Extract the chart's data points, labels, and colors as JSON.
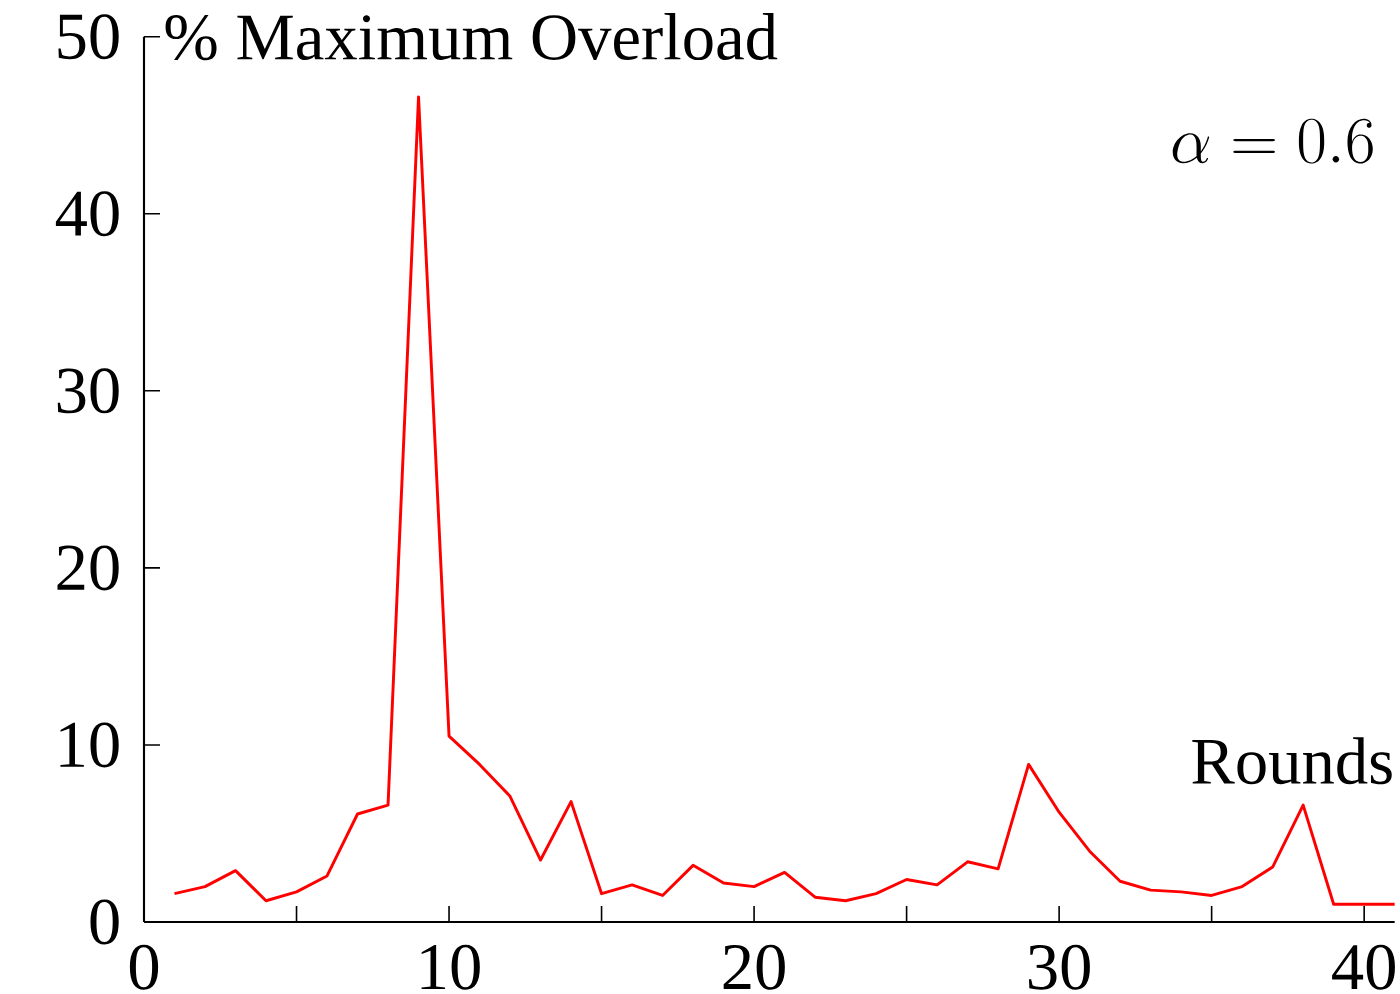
{
  "chart_data": {
    "type": "line",
    "xlabel": "Rounds",
    "ylabel": "% Maximum Overload",
    "annotations": [
      "\\alpha = 0.6"
    ],
    "x": [
      1,
      2,
      3,
      4,
      5,
      6,
      7,
      8,
      9,
      10,
      11,
      12,
      13,
      14,
      15,
      16,
      17,
      18,
      19,
      20,
      21,
      22,
      23,
      24,
      25,
      26,
      27,
      28,
      29,
      30,
      31,
      32,
      33,
      34,
      35,
      36,
      37,
      38,
      39,
      40,
      41
    ],
    "series": [
      {
        "color": "#ff0000",
        "values": [
          1.6,
          2.0,
          2.9,
          1.2,
          1.7,
          2.6,
          6.1,
          6.6,
          46.6,
          10.5,
          8.9,
          7.1,
          3.5,
          6.8,
          1.6,
          2.1,
          1.5,
          3.2,
          2.2,
          2.0,
          2.8,
          1.4,
          1.2,
          1.6,
          2.4,
          2.1,
          3.4,
          3.0,
          8.9,
          6.2,
          4.0,
          2.3,
          1.8,
          1.7,
          1.5,
          2.0,
          3.1,
          6.6,
          1.0,
          1.0,
          1.0
        ]
      }
    ],
    "xlim": [
      0,
      41
    ],
    "ylim": [
      0,
      50
    ],
    "xticks": [
      0,
      {
        "value": 5,
        "label": null
      },
      10,
      {
        "value": 15,
        "label": null
      },
      20,
      {
        "value": 25,
        "label": null
      },
      30,
      {
        "value": 35,
        "label": null
      },
      40
    ],
    "yticks": [
      0,
      10,
      20,
      30,
      40,
      50
    ],
    "grid": false,
    "marker": "none",
    "line_style": "solid"
  }
}
